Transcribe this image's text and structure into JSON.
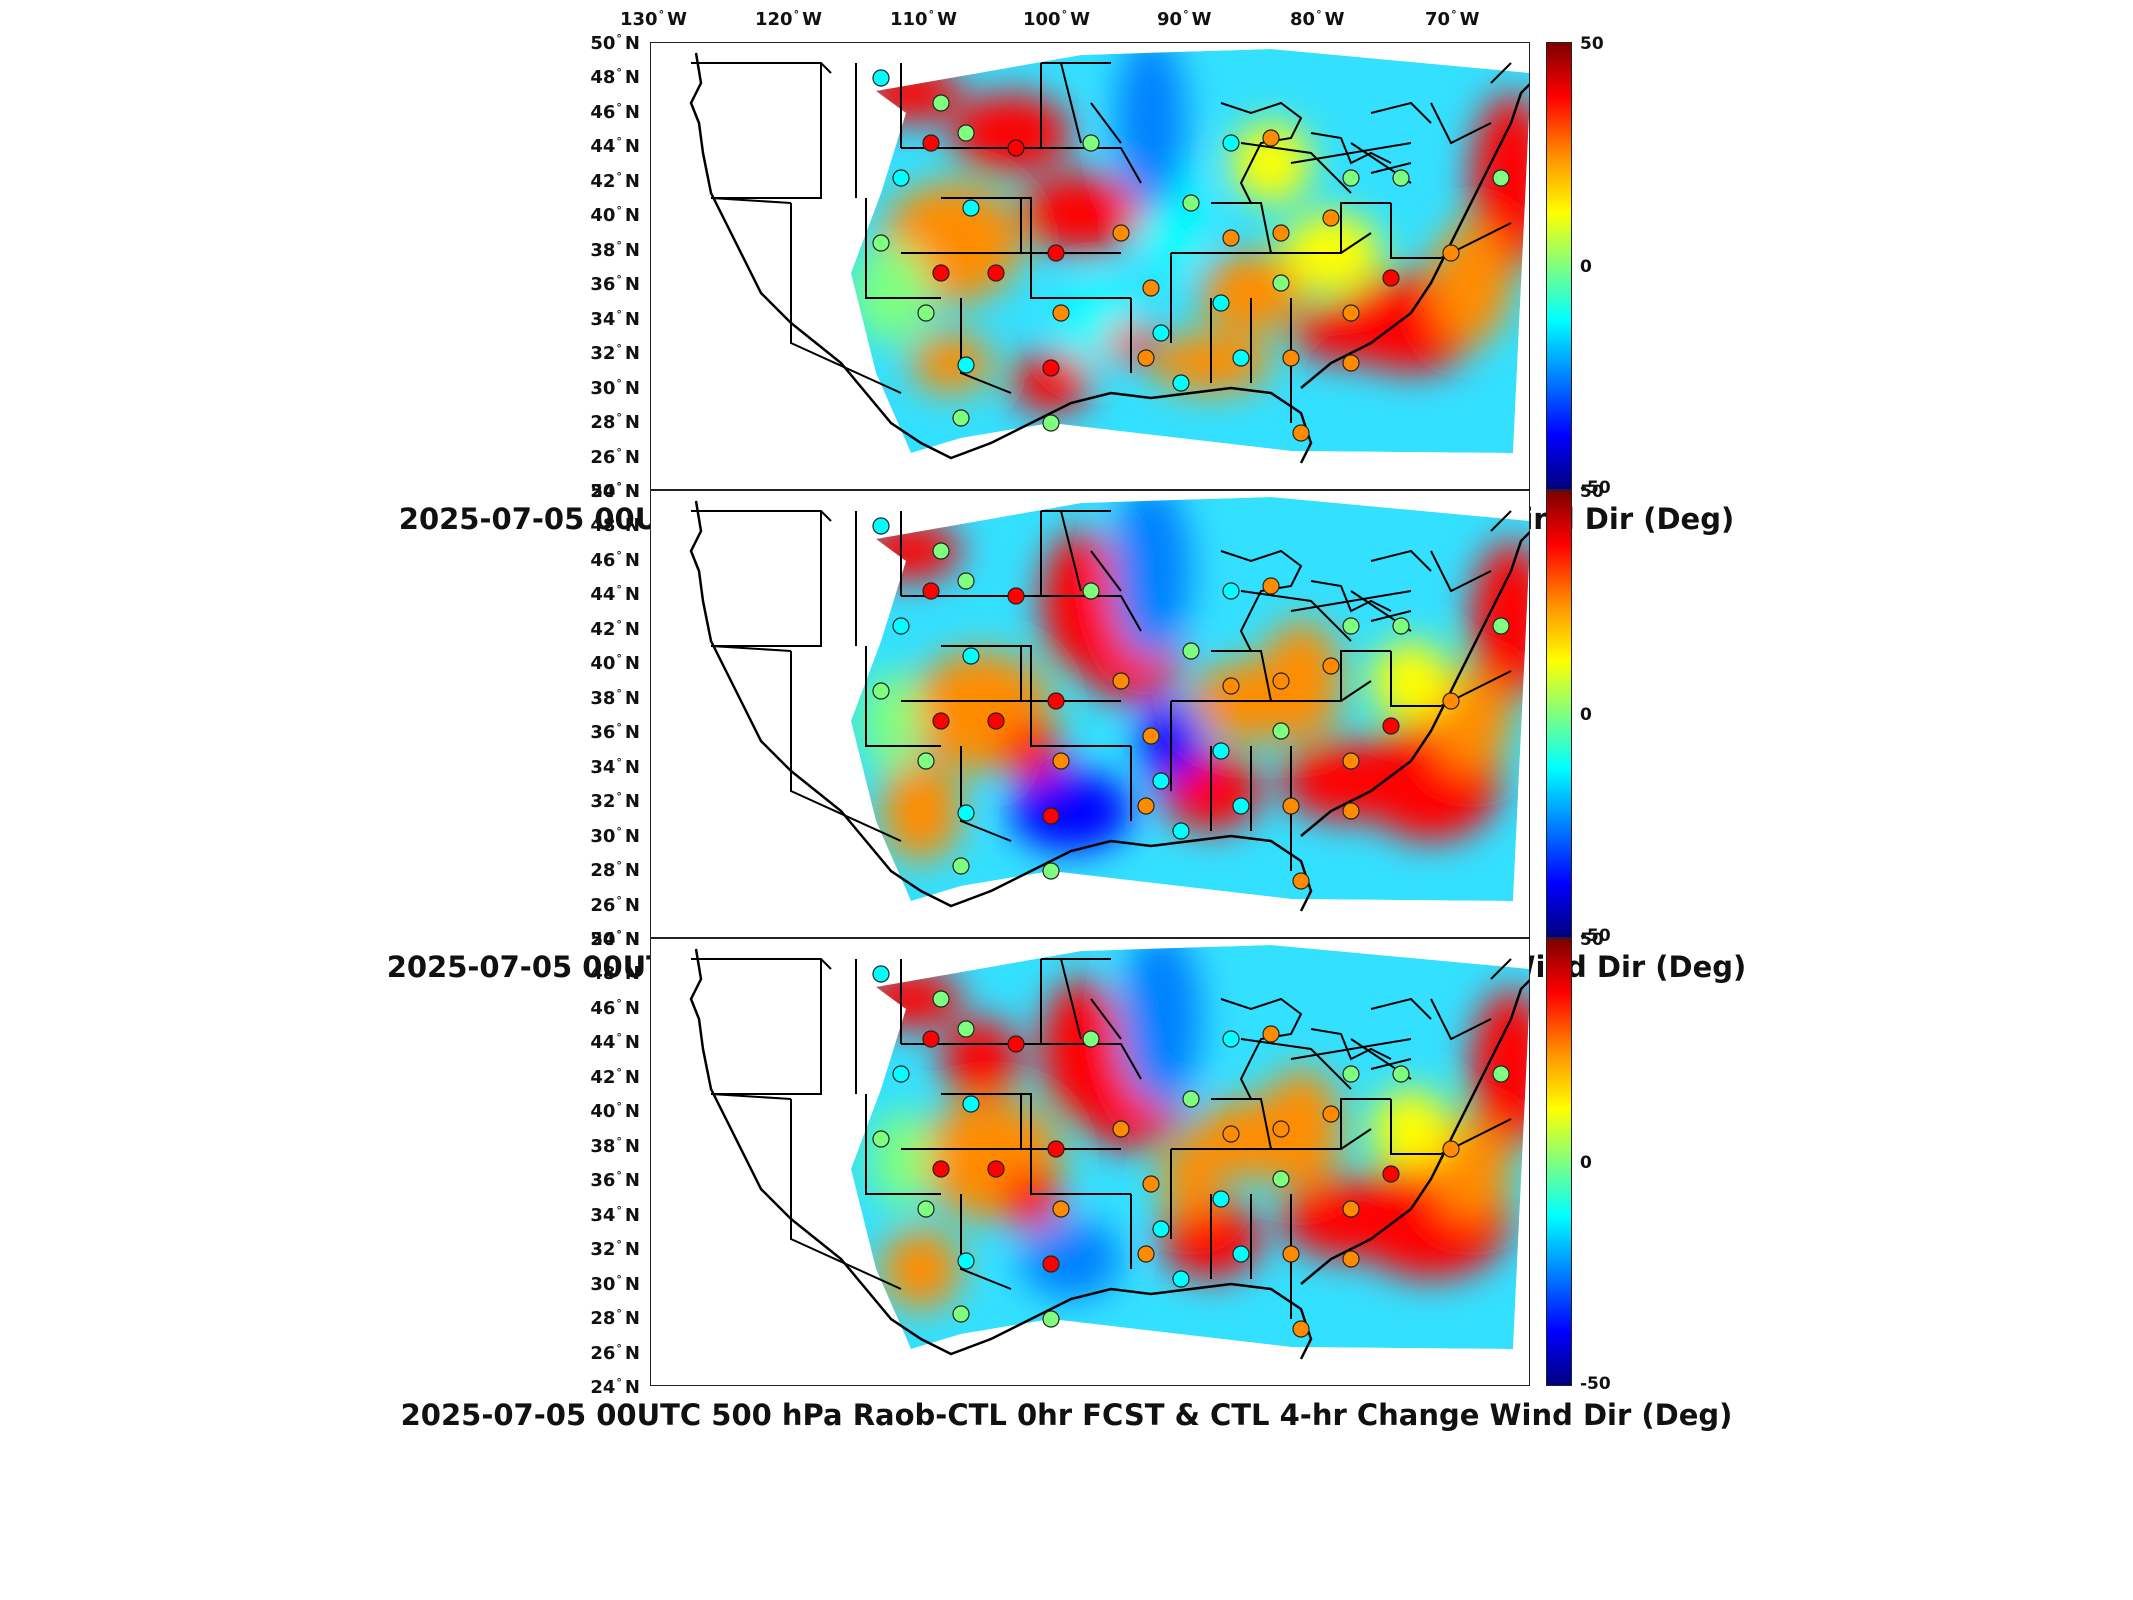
{
  "longitude_labels": [
    {
      "deg": "130",
      "dir": "W"
    },
    {
      "deg": "120",
      "dir": "W"
    },
    {
      "deg": "110",
      "dir": "W"
    },
    {
      "deg": "100",
      "dir": "W"
    },
    {
      "deg": "90",
      "dir": "W"
    },
    {
      "deg": "80",
      "dir": "W"
    },
    {
      "deg": "70",
      "dir": "W"
    }
  ],
  "latitude_labels": [
    {
      "deg": "50",
      "dir": "N"
    },
    {
      "deg": "48",
      "dir": "N"
    },
    {
      "deg": "46",
      "dir": "N"
    },
    {
      "deg": "44",
      "dir": "N"
    },
    {
      "deg": "42",
      "dir": "N"
    },
    {
      "deg": "40",
      "dir": "N"
    },
    {
      "deg": "38",
      "dir": "N"
    },
    {
      "deg": "36",
      "dir": "N"
    },
    {
      "deg": "34",
      "dir": "N"
    },
    {
      "deg": "32",
      "dir": "N"
    },
    {
      "deg": "30",
      "dir": "N"
    },
    {
      "deg": "28",
      "dir": "N"
    },
    {
      "deg": "26",
      "dir": "N"
    },
    {
      "deg": "24",
      "dir": "N"
    }
  ],
  "colorbar": {
    "max": "50",
    "mid": "0",
    "min": "-50",
    "colors": [
      "#7f0000",
      "#ff0000",
      "#ff8c00",
      "#ffff00",
      "#7fff7f",
      "#00ffff",
      "#0080ff",
      "#0000ff",
      "#00007f"
    ]
  },
  "panels": [
    {
      "title": "2025-07-05 00UTC 500 hPa Raob-CTL 0hr FCST & RTV 4-hr Change Wind Dir (Deg)"
    },
    {
      "title": "2025-07-05 00UTC 500 hPa Raob-WRF 0hr FCST & WRF 4-hr Change Wind Dir (Deg)"
    },
    {
      "title": "2025-07-05 00UTC 500 hPa Raob-CTL 0hr FCST & CTL 4-hr Change Wind Dir (Deg)"
    }
  ]
}
